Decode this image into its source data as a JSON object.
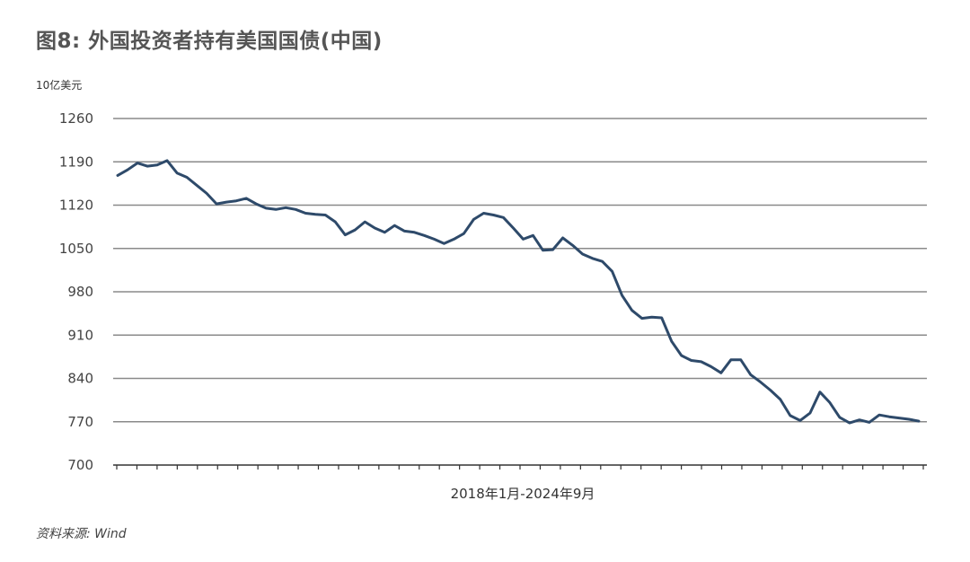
{
  "title": "图8: 外国投资者持有美国国债(中国)",
  "unit_label": "10亿美元",
  "source": "资料来源: Wind",
  "chart_data": {
    "type": "line",
    "title": "图8: 外国投资者持有美国国债(中国)",
    "xlabel": "2018年1月-2024年9月",
    "ylabel": "10亿美元",
    "ylim": [
      700,
      1260
    ],
    "yticks": [
      1260,
      1190,
      1120,
      1050,
      980,
      910,
      840,
      770,
      700
    ],
    "grid": "horizontal",
    "line_color": "#2e4a6a",
    "series": [
      {
        "values": [
          1168,
          1177,
          1188,
          1183,
          1185,
          1192,
          1172,
          1165,
          1152,
          1139,
          1122,
          1125,
          1127,
          1131,
          1122,
          1115,
          1113,
          1116,
          1113,
          1107,
          1105,
          1104,
          1093,
          1072,
          1080,
          1093,
          1083,
          1076,
          1087,
          1078,
          1076,
          1071,
          1065,
          1058,
          1065,
          1074,
          1097,
          1107,
          1104,
          1100,
          1083,
          1065,
          1071,
          1047,
          1048,
          1067,
          1055,
          1041,
          1034,
          1029,
          1013,
          974,
          950,
          937,
          939,
          938,
          900,
          877,
          869,
          867,
          859,
          849,
          870,
          870,
          846,
          834,
          821,
          806,
          780,
          772,
          784,
          818,
          801,
          777,
          768,
          773,
          769,
          781,
          778,
          776,
          774,
          771
        ]
      }
    ]
  }
}
